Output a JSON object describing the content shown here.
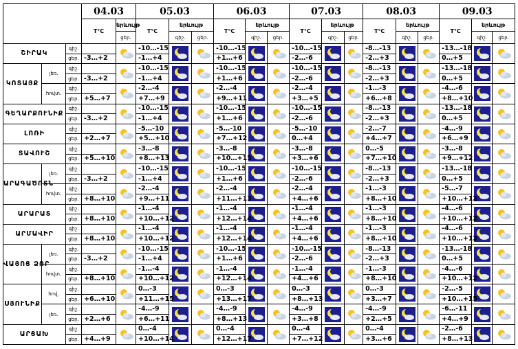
{
  "header": {
    "dates": [
      "04.03",
      "05.03",
      "06.03",
      "07.03",
      "08.03",
      "09.03"
    ],
    "temp": "T°C",
    "phenomenon": "երևույթ",
    "night": "գիշ.",
    "day": "ցեր."
  },
  "regions": [
    {
      "name": "ՇԻՐԱԿ",
      "parts": [
        {
          "today": "-3…+2",
          "night": [
            "-10…-15",
            "-10…-15",
            "-10…-15",
            "-8…-13",
            "-13…-18"
          ],
          "day": [
            "-1…+4",
            "+1…+6",
            "-2…-6",
            "-2…+3",
            "0…+5"
          ]
        }
      ]
    },
    {
      "name": "ԿՈՏԱՅՔ",
      "parts": [
        {
          "sub": "լեռ.",
          "today": "-3…+2",
          "night": [
            "-10…-15",
            "-10…-15",
            "-10…-15",
            "-8…-13",
            "-13…-18"
          ],
          "day": [
            "-1…+4",
            "+1…+6",
            "-2…-6",
            "-2…+3",
            "0…+5"
          ]
        },
        {
          "sub": "հովտ.",
          "today": "+5…+7",
          "night": [
            "-2…-4",
            "-2…-4",
            "-2…-4",
            "-1…-3",
            "-4…-6"
          ],
          "day": [
            "+7…+9",
            "+9…+11",
            "+3…+5",
            "+6…+8",
            "+8…+10"
          ]
        }
      ]
    },
    {
      "name": "ԳԵՂԱՐՔՈՒՆԻՔ",
      "parts": [
        {
          "today": "-3…+2",
          "night": [
            "-10…-15",
            "-10…-15",
            "-10…-15",
            "-8…-13",
            "-13…-18"
          ],
          "day": [
            "-1…+4",
            "+1…+6",
            "-2…-6",
            "-2…+3",
            "0…+5"
          ]
        }
      ]
    },
    {
      "name": "ԼՈՌԻ",
      "parts": [
        {
          "today": "+2…+7",
          "night": [
            "-5…-10",
            "-5…-10",
            "-5…-10",
            "-2…-7",
            "-4…-9"
          ],
          "day": [
            "+5…+10",
            "+7…+12",
            "0…+4",
            "+4…+7",
            "+6…+9"
          ]
        }
      ]
    },
    {
      "name": "ՏԱՎՈՒՇ",
      "parts": [
        {
          "today": "+5…+10",
          "night": [
            "-3…-8",
            "-3…-8",
            "-3…-8",
            "0…-5",
            "-3…-8"
          ],
          "day": [
            "+8…+13",
            "+10…+15",
            "+3…+6",
            "+7…+10",
            "+9…+12"
          ]
        }
      ]
    },
    {
      "name": "ԱՐԱԳԱԾՈՏՆ",
      "parts": [
        {
          "sub": "լեռ.",
          "today": "-3…+2",
          "night": [
            "-10…-15",
            "-10…-15",
            "-10…-15",
            "-8…-13",
            "-13…-18"
          ],
          "day": [
            "-1…+4",
            "+1…+6",
            "-2…-6",
            "-2…+3",
            "0…+5"
          ]
        },
        {
          "sub": "հովտ.",
          "today": "+8…+10",
          "night": [
            "-2…-4",
            "-2…-4",
            "-2…-4",
            "-1…-3",
            "-5…-7"
          ],
          "day": [
            "+9…+11",
            "+11…+13",
            "+4…+6",
            "+8…+10",
            "+10…+12"
          ]
        }
      ]
    },
    {
      "name": "ԱՐԱՐԱՏ",
      "parts": [
        {
          "today": "+8…+10",
          "night": [
            "-1…-4",
            "-1…-4",
            "-1…-4",
            "-1…-3",
            "-4…-6"
          ],
          "day": [
            "+10…+12",
            "+12…+14",
            "+4…+6",
            "+8…+10",
            "+10…+12"
          ]
        }
      ]
    },
    {
      "name": "ԱՐՄԱՎԻՐ",
      "parts": [
        {
          "today": "+8…+10",
          "night": [
            "-1…-4",
            "-1…-4",
            "-1…-4",
            "-1…-3",
            "-4…-6"
          ],
          "day": [
            "+10…+12",
            "+12…+14",
            "+4…+6",
            "+8…+10",
            "+10…+12"
          ]
        }
      ]
    },
    {
      "name": "ՎԱՅՈՑ ՁՈՐ",
      "parts": [
        {
          "sub": "լեռ.",
          "today": "-3…+2",
          "night": [
            "-10…-15",
            "-10…-15",
            "-10…-15",
            "-8…-13",
            "-13…-18"
          ],
          "day": [
            "-1…+4",
            "+1…+6",
            "-2…-6",
            "-2…+3",
            "0…+5"
          ]
        },
        {
          "sub": "հովտ.",
          "today": "+8…+10",
          "night": [
            "-1…-4",
            "-1…-4",
            "-1…-4",
            "-1…-3",
            "-4…-6"
          ],
          "day": [
            "+10…+12",
            "+12…+14",
            "+4…+6",
            "+8…+10",
            "+10…+12"
          ]
        }
      ]
    },
    {
      "name": "ՍՅՈՒՆԻՔ",
      "parts": [
        {
          "sub": "հով.",
          "today": "+6…+10",
          "night": [
            "0…-3",
            "0…-3",
            "0…-3",
            "0…-3",
            "-2…-5"
          ],
          "day": [
            "+11…+15",
            "+13…+17",
            "+8…+13",
            "+3…+7",
            "+10…+15"
          ]
        },
        {
          "sub": "լեռ.",
          "today": "+2…+6",
          "night": [
            "-4…-9",
            "-4…-9",
            "-4…-9",
            "-4…-9",
            "-6…-11"
          ],
          "day": [
            "+6…+11",
            "+8…+13",
            "+3…+8",
            "+2…+5",
            "+4…+9"
          ]
        }
      ]
    },
    {
      "name": "ԱՐՑԱԽ",
      "parts": [
        {
          "today": "+4…+9",
          "night": [
            "0…-4",
            "0…-4",
            "0…-4",
            "0…-4",
            "-2…-6"
          ],
          "day": [
            "+10…+14",
            "+12…+17",
            "+7…+12",
            "+3…+6",
            "+8…+13"
          ]
        }
      ]
    }
  ]
}
